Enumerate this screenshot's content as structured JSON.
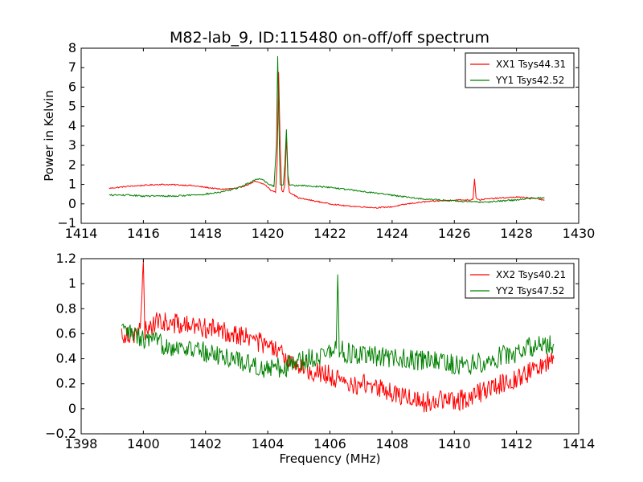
{
  "figure": {
    "title": "M82-lab_9, ID:115480 on-off/off spectrum"
  },
  "chart_data": [
    {
      "type": "line",
      "title": "M82-lab_9, ID:115480 on-off/off spectrum",
      "xlabel": "",
      "ylabel": "Power in Kelvin",
      "xlim": [
        1414,
        1430
      ],
      "ylim": [
        -1,
        8
      ],
      "xticks": [
        1414,
        1416,
        1418,
        1420,
        1422,
        1424,
        1426,
        1428,
        1430
      ],
      "yticks": [
        -1,
        0,
        1,
        2,
        3,
        4,
        5,
        6,
        7,
        8
      ],
      "legend_position": "top-right",
      "series": [
        {
          "name": "XX1 Tsys44.31",
          "color": "#ff0000",
          "x": [
            1414.9,
            1415.5,
            1416.0,
            1416.5,
            1417.0,
            1417.5,
            1418.0,
            1418.5,
            1419.0,
            1419.3,
            1419.6,
            1419.9,
            1420.1,
            1420.25,
            1420.3,
            1420.35,
            1420.4,
            1420.45,
            1420.5,
            1420.55,
            1420.6,
            1420.65,
            1420.7,
            1420.8,
            1421.0,
            1421.5,
            1422.0,
            1422.5,
            1423.0,
            1423.5,
            1424.0,
            1424.5,
            1425.0,
            1425.5,
            1426.0,
            1426.5,
            1426.6,
            1426.65,
            1426.7,
            1426.8,
            1427.0,
            1427.5,
            1428.0,
            1428.5,
            1428.9
          ],
          "y": [
            0.8,
            0.9,
            0.95,
            1.0,
            0.98,
            0.95,
            0.85,
            0.75,
            0.8,
            0.95,
            1.15,
            1.0,
            0.7,
            0.6,
            2.0,
            6.8,
            3.0,
            0.7,
            0.6,
            1.0,
            3.5,
            1.2,
            0.6,
            0.5,
            0.3,
            0.15,
            0.0,
            -0.1,
            -0.15,
            -0.2,
            -0.15,
            0.0,
            0.1,
            0.15,
            0.2,
            0.2,
            0.25,
            1.3,
            0.3,
            0.2,
            0.25,
            0.3,
            0.35,
            0.3,
            0.2
          ]
        },
        {
          "name": "YY1 Tsys42.52",
          "color": "#008000",
          "x": [
            1414.9,
            1415.5,
            1416.0,
            1416.5,
            1417.0,
            1417.5,
            1418.0,
            1418.5,
            1419.0,
            1419.3,
            1419.6,
            1419.8,
            1420.0,
            1420.2,
            1420.28,
            1420.32,
            1420.36,
            1420.4,
            1420.5,
            1420.55,
            1420.6,
            1420.65,
            1420.7,
            1420.8,
            1421.0,
            1421.5,
            1422.0,
            1422.5,
            1423.0,
            1423.5,
            1424.0,
            1424.5,
            1425.0,
            1425.5,
            1426.0,
            1426.5,
            1427.0,
            1427.5,
            1428.0,
            1428.5,
            1428.9
          ],
          "y": [
            0.45,
            0.45,
            0.4,
            0.4,
            0.4,
            0.45,
            0.5,
            0.6,
            0.8,
            1.0,
            1.25,
            1.3,
            1.05,
            0.9,
            3.0,
            7.6,
            4.0,
            1.0,
            1.0,
            2.0,
            3.8,
            1.5,
            1.0,
            0.95,
            0.95,
            0.9,
            0.85,
            0.75,
            0.65,
            0.55,
            0.45,
            0.35,
            0.25,
            0.2,
            0.15,
            0.1,
            0.1,
            0.15,
            0.2,
            0.3,
            0.3
          ]
        }
      ]
    },
    {
      "type": "line",
      "title": "",
      "xlabel": "Frequency (MHz)",
      "ylabel": "",
      "xlim": [
        1398,
        1414
      ],
      "ylim": [
        -0.2,
        1.2
      ],
      "xticks": [
        1398,
        1400,
        1402,
        1404,
        1406,
        1408,
        1410,
        1412,
        1414
      ],
      "yticks": [
        -0.2,
        0.0,
        0.2,
        0.4,
        0.6,
        0.8,
        1.0,
        1.2
      ],
      "legend_position": "top-right",
      "series": [
        {
          "name": "XX2 Tsys40.21",
          "color": "#ff0000",
          "x": [
            1399.3,
            1399.6,
            1399.9,
            1400.0,
            1400.05,
            1400.1,
            1400.5,
            1401.0,
            1401.5,
            1402.0,
            1402.5,
            1403.0,
            1403.5,
            1404.0,
            1404.5,
            1405.0,
            1405.5,
            1406.0,
            1406.3,
            1406.5,
            1407.0,
            1407.5,
            1408.0,
            1408.5,
            1409.0,
            1409.5,
            1410.0,
            1410.5,
            1411.0,
            1411.5,
            1412.0,
            1412.5,
            1413.0,
            1413.2
          ],
          "y": [
            0.6,
            0.6,
            0.62,
            1.13,
            0.6,
            0.65,
            0.7,
            0.68,
            0.66,
            0.65,
            0.62,
            0.6,
            0.56,
            0.5,
            0.42,
            0.35,
            0.3,
            0.27,
            0.22,
            0.18,
            0.2,
            0.18,
            0.12,
            0.1,
            0.05,
            0.08,
            0.05,
            0.1,
            0.15,
            0.2,
            0.25,
            0.3,
            0.38,
            0.4
          ]
        },
        {
          "name": "YY2 Tsys47.52",
          "color": "#008000",
          "x": [
            1399.3,
            1399.6,
            1400.0,
            1400.5,
            1401.0,
            1401.5,
            1402.0,
            1402.5,
            1403.0,
            1403.5,
            1404.0,
            1404.5,
            1405.0,
            1405.5,
            1406.0,
            1406.2,
            1406.25,
            1406.3,
            1406.5,
            1407.0,
            1407.5,
            1408.0,
            1408.5,
            1409.0,
            1409.5,
            1410.0,
            1410.5,
            1411.0,
            1411.5,
            1412.0,
            1412.5,
            1413.0,
            1413.2
          ],
          "y": [
            0.62,
            0.6,
            0.55,
            0.52,
            0.5,
            0.48,
            0.45,
            0.42,
            0.4,
            0.35,
            0.32,
            0.33,
            0.38,
            0.42,
            0.45,
            0.48,
            1.05,
            0.48,
            0.45,
            0.42,
            0.42,
            0.4,
            0.4,
            0.38,
            0.38,
            0.35,
            0.35,
            0.38,
            0.42,
            0.45,
            0.5,
            0.52,
            0.52
          ]
        }
      ]
    }
  ]
}
